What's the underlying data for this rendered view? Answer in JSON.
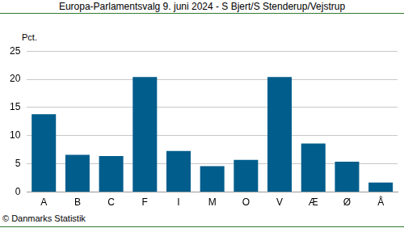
{
  "chart_data": {
    "type": "bar",
    "title": "Europa-Parlamentsvalg 9. juni 2024 - S Bjert/S Stenderup/Vejstrup",
    "ylabel": "Pct.",
    "source": "© Danmarks Statistik",
    "categories": [
      "A",
      "B",
      "C",
      "F",
      "I",
      "M",
      "O",
      "V",
      "Æ",
      "Ø",
      "Å"
    ],
    "values": [
      13.8,
      6.6,
      6.4,
      20.4,
      7.3,
      4.6,
      5.7,
      20.4,
      8.6,
      5.4,
      1.7
    ],
    "color": "#005d8c",
    "ylim": [
      0,
      25
    ],
    "yticks": [
      0,
      5,
      10,
      15,
      20,
      25
    ],
    "grid": true
  }
}
